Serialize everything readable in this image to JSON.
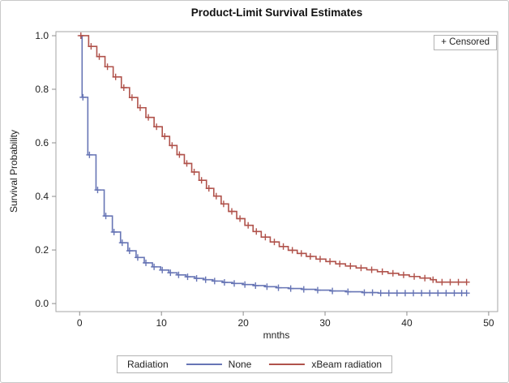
{
  "figure": {
    "title": "Product-Limit Survival Estimates",
    "x_axis": {
      "label": "mnths",
      "ticks": [
        0,
        10,
        20,
        30,
        40,
        50
      ]
    },
    "y_axis": {
      "label": "Survival Probability",
      "ticks": [
        0.0,
        0.2,
        0.4,
        0.6,
        0.8,
        1.0
      ]
    },
    "censored_box_label": "+ Censored",
    "legend": {
      "title": "Radiation",
      "entries": [
        {
          "label": "None",
          "color": "#6775b5"
        },
        {
          "label": "xBeam radiation",
          "color": "#b0524b"
        }
      ]
    }
  },
  "colors": {
    "frame": "#a6a6a6",
    "tick": "#8c8c8c",
    "text": "#222222",
    "blue": "#6775b5",
    "red": "#b0524b"
  },
  "chart_data": {
    "type": "line",
    "subtype": "kaplan-meier-step-function",
    "title": "Product-Limit Survival Estimates",
    "xlabel": "mnths",
    "ylabel": "Survival Probability",
    "xlim": [
      -2.9,
      51.1
    ],
    "ylim": [
      -0.03,
      1.015
    ],
    "grid": false,
    "legend_position": "bottom",
    "series": [
      {
        "name": "None",
        "color": "#6775b5",
        "end_time": 47.3,
        "steps": [
          [
            0,
            1.0
          ],
          [
            0.3,
            0.77
          ],
          [
            1.0,
            0.555
          ],
          [
            2.0,
            0.424
          ],
          [
            3.0,
            0.327
          ],
          [
            4.0,
            0.267
          ],
          [
            5.0,
            0.227
          ],
          [
            5.9,
            0.197
          ],
          [
            6.9,
            0.172
          ],
          [
            7.9,
            0.152
          ],
          [
            8.9,
            0.137
          ],
          [
            9.9,
            0.125
          ],
          [
            10.9,
            0.115
          ],
          [
            11.9,
            0.107
          ],
          [
            13.0,
            0.1
          ],
          [
            14.1,
            0.094
          ],
          [
            15.2,
            0.089
          ],
          [
            16.3,
            0.084
          ],
          [
            17.5,
            0.079
          ],
          [
            18.7,
            0.075
          ],
          [
            20.0,
            0.071
          ],
          [
            21.3,
            0.067
          ],
          [
            22.7,
            0.063
          ],
          [
            24.1,
            0.059
          ],
          [
            25.6,
            0.056
          ],
          [
            27.2,
            0.053
          ],
          [
            28.9,
            0.05
          ],
          [
            30.7,
            0.047
          ],
          [
            32.6,
            0.044
          ],
          [
            34.6,
            0.041
          ],
          [
            36.5,
            0.039
          ]
        ],
        "censor_times": [
          0.4,
          1.2,
          2.2,
          3.2,
          4.2,
          5.2,
          6.1,
          7.1,
          8.1,
          9.1,
          10.1,
          11.1,
          12.1,
          13.2,
          14.3,
          15.4,
          16.5,
          17.7,
          18.9,
          20.2,
          21.5,
          22.9,
          24.3,
          25.8,
          27.4,
          29.1,
          30.9,
          32.8,
          34.8,
          35.8,
          36.8,
          37.8,
          38.8,
          39.8,
          40.8,
          41.8,
          42.8,
          43.8,
          44.8,
          45.8,
          46.7,
          47.3
        ]
      },
      {
        "name": "xBeam radiation",
        "color": "#b0524b",
        "end_time": 47.3,
        "steps": [
          [
            0,
            1.0
          ],
          [
            1.1,
            0.96
          ],
          [
            2.1,
            0.922
          ],
          [
            3.1,
            0.884
          ],
          [
            4.1,
            0.846
          ],
          [
            5.1,
            0.806
          ],
          [
            6.1,
            0.769
          ],
          [
            7.1,
            0.731
          ],
          [
            8.1,
            0.695
          ],
          [
            9.1,
            0.66
          ],
          [
            10.1,
            0.624
          ],
          [
            11.0,
            0.59
          ],
          [
            11.9,
            0.556
          ],
          [
            12.8,
            0.523
          ],
          [
            13.7,
            0.491
          ],
          [
            14.6,
            0.46
          ],
          [
            15.5,
            0.43
          ],
          [
            16.4,
            0.401
          ],
          [
            17.3,
            0.372
          ],
          [
            18.2,
            0.344
          ],
          [
            19.2,
            0.317
          ],
          [
            20.2,
            0.292
          ],
          [
            21.2,
            0.269
          ],
          [
            22.2,
            0.248
          ],
          [
            23.3,
            0.23
          ],
          [
            24.4,
            0.213
          ],
          [
            25.5,
            0.199
          ],
          [
            26.6,
            0.187
          ],
          [
            27.7,
            0.176
          ],
          [
            28.9,
            0.166
          ],
          [
            30.1,
            0.157
          ],
          [
            31.3,
            0.148
          ],
          [
            32.5,
            0.14
          ],
          [
            33.8,
            0.133
          ],
          [
            35.1,
            0.126
          ],
          [
            36.4,
            0.119
          ],
          [
            37.7,
            0.113
          ],
          [
            39.0,
            0.107
          ],
          [
            40.3,
            0.101
          ],
          [
            41.6,
            0.095
          ],
          [
            42.9,
            0.089
          ],
          [
            43.6,
            0.08
          ]
        ],
        "censor_times": [
          0.15,
          1.4,
          2.4,
          3.4,
          4.4,
          5.4,
          6.4,
          7.4,
          8.4,
          9.4,
          10.4,
          11.3,
          12.2,
          13.1,
          14.0,
          14.9,
          15.8,
          16.7,
          17.6,
          18.6,
          19.6,
          20.6,
          21.6,
          22.7,
          23.8,
          24.9,
          26.0,
          27.1,
          28.2,
          29.4,
          30.6,
          31.8,
          33.1,
          34.4,
          35.7,
          37.0,
          38.3,
          39.6,
          40.9,
          42.2,
          43.2,
          44.3,
          45.3,
          46.3,
          47.3
        ]
      }
    ]
  }
}
